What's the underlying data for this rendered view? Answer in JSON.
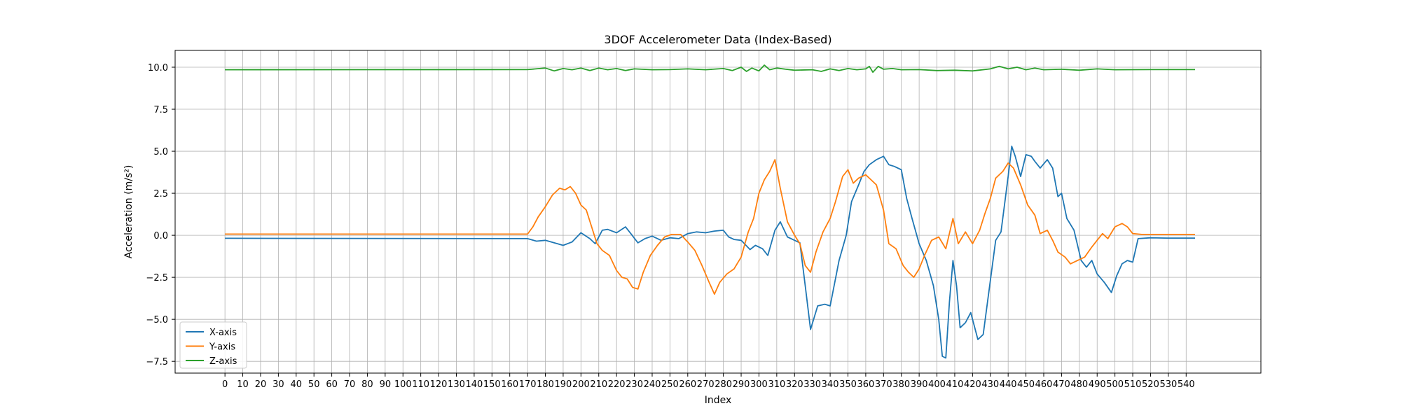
{
  "chart_data": {
    "type": "line",
    "title": "3DOF Accelerometer Data (Index-Based)",
    "xlabel": "Index",
    "ylabel": "Acceleration (m/s²)",
    "xlim": [
      -28,
      582
    ],
    "ylim": [
      -8.2,
      11.0
    ],
    "x_ticks": [
      0,
      10,
      20,
      30,
      40,
      50,
      60,
      70,
      80,
      90,
      100,
      110,
      120,
      130,
      140,
      150,
      160,
      170,
      180,
      190,
      200,
      210,
      220,
      230,
      240,
      250,
      260,
      270,
      280,
      290,
      300,
      310,
      320,
      330,
      340,
      350,
      360,
      370,
      380,
      390,
      400,
      410,
      420,
      430,
      440,
      450,
      460,
      470,
      480,
      490,
      500,
      510,
      520,
      530,
      540
    ],
    "y_ticks": [
      -7.5,
      -5.0,
      -2.5,
      0.0,
      2.5,
      5.0,
      7.5,
      10.0
    ],
    "y_tick_labels": [
      "−7.5",
      "−5.0",
      "−2.5",
      "0.0",
      "2.5",
      "5.0",
      "7.5",
      "10.0"
    ],
    "grid": true,
    "legend_position": "bottom-left",
    "colors": {
      "x": "#1f77b4",
      "y": "#ff7f0e",
      "z": "#2ca02c"
    },
    "series": [
      {
        "name": "X-axis",
        "color": "#1f77b4",
        "points": [
          [
            0,
            -0.18
          ],
          [
            170,
            -0.2
          ],
          [
            175,
            -0.35
          ],
          [
            180,
            -0.3
          ],
          [
            185,
            -0.45
          ],
          [
            190,
            -0.6
          ],
          [
            195,
            -0.4
          ],
          [
            200,
            0.15
          ],
          [
            205,
            -0.2
          ],
          [
            208,
            -0.5
          ],
          [
            212,
            0.3
          ],
          [
            215,
            0.35
          ],
          [
            220,
            0.15
          ],
          [
            225,
            0.5
          ],
          [
            228,
            0.1
          ],
          [
            232,
            -0.45
          ],
          [
            236,
            -0.2
          ],
          [
            240,
            -0.05
          ],
          [
            245,
            -0.3
          ],
          [
            250,
            -0.15
          ],
          [
            255,
            -0.2
          ],
          [
            260,
            0.1
          ],
          [
            265,
            0.2
          ],
          [
            270,
            0.15
          ],
          [
            275,
            0.25
          ],
          [
            280,
            0.3
          ],
          [
            283,
            -0.1
          ],
          [
            286,
            -0.25
          ],
          [
            290,
            -0.3
          ],
          [
            295,
            -0.85
          ],
          [
            298,
            -0.6
          ],
          [
            302,
            -0.8
          ],
          [
            305,
            -1.2
          ],
          [
            309,
            0.3
          ],
          [
            312,
            0.8
          ],
          [
            316,
            -0.1
          ],
          [
            320,
            -0.3
          ],
          [
            323,
            -0.45
          ],
          [
            326,
            -3.0
          ],
          [
            329,
            -5.6
          ],
          [
            333,
            -4.2
          ],
          [
            337,
            -4.1
          ],
          [
            340,
            -4.2
          ],
          [
            345,
            -1.5
          ],
          [
            349,
            0.0
          ],
          [
            352,
            2.0
          ],
          [
            356,
            3.0
          ],
          [
            359,
            3.8
          ],
          [
            362,
            4.2
          ],
          [
            366,
            4.5
          ],
          [
            370,
            4.7
          ],
          [
            373,
            4.2
          ],
          [
            376,
            4.1
          ],
          [
            380,
            3.9
          ],
          [
            383,
            2.2
          ],
          [
            386,
            1.0
          ],
          [
            390,
            -0.5
          ],
          [
            394,
            -1.5
          ],
          [
            398,
            -3.0
          ],
          [
            401,
            -5.0
          ],
          [
            403,
            -7.2
          ],
          [
            405,
            -7.3
          ],
          [
            407,
            -4.0
          ],
          [
            409,
            -1.5
          ],
          [
            411,
            -3.0
          ],
          [
            413,
            -5.5
          ],
          [
            416,
            -5.2
          ],
          [
            419,
            -4.6
          ],
          [
            423,
            -6.2
          ],
          [
            426,
            -5.9
          ],
          [
            429,
            -3.5
          ],
          [
            433,
            -0.3
          ],
          [
            436,
            0.2
          ],
          [
            440,
            3.5
          ],
          [
            442,
            5.3
          ],
          [
            444,
            4.7
          ],
          [
            447,
            3.5
          ],
          [
            450,
            4.8
          ],
          [
            453,
            4.7
          ],
          [
            455,
            4.4
          ],
          [
            458,
            4.0
          ],
          [
            462,
            4.5
          ],
          [
            465,
            4.0
          ],
          [
            468,
            2.3
          ],
          [
            470,
            2.5
          ],
          [
            473,
            1.0
          ],
          [
            477,
            0.3
          ],
          [
            481,
            -1.5
          ],
          [
            484,
            -1.9
          ],
          [
            487,
            -1.5
          ],
          [
            490,
            -2.3
          ],
          [
            494,
            -2.8
          ],
          [
            498,
            -3.4
          ],
          [
            501,
            -2.4
          ],
          [
            504,
            -1.7
          ],
          [
            507,
            -1.5
          ],
          [
            510,
            -1.6
          ],
          [
            513,
            -0.2
          ],
          [
            520,
            -0.15
          ],
          [
            530,
            -0.17
          ],
          [
            545,
            -0.17
          ]
        ]
      },
      {
        "name": "Y-axis",
        "color": "#ff7f0e",
        "points": [
          [
            0,
            0.07
          ],
          [
            170,
            0.07
          ],
          [
            173,
            0.5
          ],
          [
            176,
            1.1
          ],
          [
            180,
            1.7
          ],
          [
            184,
            2.4
          ],
          [
            188,
            2.8
          ],
          [
            191,
            2.7
          ],
          [
            194,
            2.9
          ],
          [
            197,
            2.5
          ],
          [
            200,
            1.8
          ],
          [
            203,
            1.5
          ],
          [
            206,
            0.5
          ],
          [
            209,
            -0.5
          ],
          [
            212,
            -0.9
          ],
          [
            216,
            -1.2
          ],
          [
            220,
            -2.1
          ],
          [
            223,
            -2.5
          ],
          [
            226,
            -2.6
          ],
          [
            229,
            -3.1
          ],
          [
            232,
            -3.2
          ],
          [
            235,
            -2.2
          ],
          [
            239,
            -1.2
          ],
          [
            243,
            -0.6
          ],
          [
            247,
            -0.1
          ],
          [
            251,
            0.05
          ],
          [
            256,
            0.05
          ],
          [
            260,
            -0.4
          ],
          [
            264,
            -0.9
          ],
          [
            268,
            -1.8
          ],
          [
            272,
            -2.8
          ],
          [
            275,
            -3.5
          ],
          [
            278,
            -2.8
          ],
          [
            282,
            -2.3
          ],
          [
            286,
            -2.0
          ],
          [
            290,
            -1.3
          ],
          [
            294,
            0.2
          ],
          [
            297,
            1.0
          ],
          [
            300,
            2.5
          ],
          [
            303,
            3.3
          ],
          [
            306,
            3.8
          ],
          [
            309,
            4.5
          ],
          [
            312,
            2.8
          ],
          [
            316,
            0.8
          ],
          [
            320,
            0.0
          ],
          [
            323,
            -0.5
          ],
          [
            326,
            -1.8
          ],
          [
            329,
            -2.2
          ],
          [
            332,
            -1.0
          ],
          [
            336,
            0.2
          ],
          [
            340,
            1.0
          ],
          [
            343,
            2.0
          ],
          [
            347,
            3.5
          ],
          [
            350,
            3.9
          ],
          [
            353,
            3.1
          ],
          [
            356,
            3.4
          ],
          [
            360,
            3.6
          ],
          [
            363,
            3.3
          ],
          [
            366,
            3.0
          ],
          [
            370,
            1.5
          ],
          [
            373,
            -0.5
          ],
          [
            377,
            -0.8
          ],
          [
            381,
            -1.8
          ],
          [
            384,
            -2.2
          ],
          [
            387,
            -2.5
          ],
          [
            390,
            -2.0
          ],
          [
            393,
            -1.2
          ],
          [
            397,
            -0.3
          ],
          [
            401,
            -0.1
          ],
          [
            405,
            -0.8
          ],
          [
            409,
            1.0
          ],
          [
            412,
            -0.5
          ],
          [
            416,
            0.2
          ],
          [
            420,
            -0.5
          ],
          [
            424,
            0.3
          ],
          [
            427,
            1.3
          ],
          [
            430,
            2.2
          ],
          [
            433,
            3.4
          ],
          [
            437,
            3.8
          ],
          [
            440,
            4.3
          ],
          [
            443,
            4.0
          ],
          [
            447,
            3.0
          ],
          [
            451,
            1.8
          ],
          [
            455,
            1.2
          ],
          [
            458,
            0.1
          ],
          [
            462,
            0.3
          ],
          [
            465,
            -0.3
          ],
          [
            468,
            -1.0
          ],
          [
            472,
            -1.3
          ],
          [
            475,
            -1.7
          ],
          [
            479,
            -1.5
          ],
          [
            483,
            -1.3
          ],
          [
            487,
            -0.7
          ],
          [
            490,
            -0.3
          ],
          [
            493,
            0.1
          ],
          [
            496,
            -0.2
          ],
          [
            500,
            0.5
          ],
          [
            504,
            0.7
          ],
          [
            507,
            0.5
          ],
          [
            510,
            0.1
          ],
          [
            515,
            0.05
          ],
          [
            545,
            0.05
          ]
        ]
      },
      {
        "name": "Z-axis",
        "color": "#2ca02c",
        "points": [
          [
            0,
            9.85
          ],
          [
            170,
            9.86
          ],
          [
            180,
            9.95
          ],
          [
            185,
            9.78
          ],
          [
            190,
            9.92
          ],
          [
            195,
            9.85
          ],
          [
            200,
            9.95
          ],
          [
            205,
            9.8
          ],
          [
            210,
            9.95
          ],
          [
            215,
            9.85
          ],
          [
            220,
            9.92
          ],
          [
            225,
            9.8
          ],
          [
            230,
            9.9
          ],
          [
            240,
            9.85
          ],
          [
            250,
            9.86
          ],
          [
            260,
            9.9
          ],
          [
            270,
            9.85
          ],
          [
            280,
            9.92
          ],
          [
            285,
            9.8
          ],
          [
            290,
            10.0
          ],
          [
            293,
            9.75
          ],
          [
            296,
            9.95
          ],
          [
            300,
            9.78
          ],
          [
            303,
            10.12
          ],
          [
            306,
            9.85
          ],
          [
            310,
            9.95
          ],
          [
            315,
            9.88
          ],
          [
            320,
            9.82
          ],
          [
            330,
            9.85
          ],
          [
            335,
            9.75
          ],
          [
            340,
            9.9
          ],
          [
            345,
            9.8
          ],
          [
            350,
            9.92
          ],
          [
            355,
            9.85
          ],
          [
            360,
            9.9
          ],
          [
            362,
            10.05
          ],
          [
            364,
            9.7
          ],
          [
            367,
            10.05
          ],
          [
            370,
            9.88
          ],
          [
            375,
            9.92
          ],
          [
            380,
            9.85
          ],
          [
            390,
            9.86
          ],
          [
            400,
            9.8
          ],
          [
            410,
            9.82
          ],
          [
            420,
            9.78
          ],
          [
            430,
            9.9
          ],
          [
            435,
            10.05
          ],
          [
            440,
            9.9
          ],
          [
            445,
            10.0
          ],
          [
            450,
            9.85
          ],
          [
            455,
            9.95
          ],
          [
            460,
            9.85
          ],
          [
            470,
            9.88
          ],
          [
            480,
            9.82
          ],
          [
            490,
            9.9
          ],
          [
            500,
            9.85
          ],
          [
            520,
            9.86
          ],
          [
            545,
            9.86
          ]
        ]
      }
    ]
  }
}
